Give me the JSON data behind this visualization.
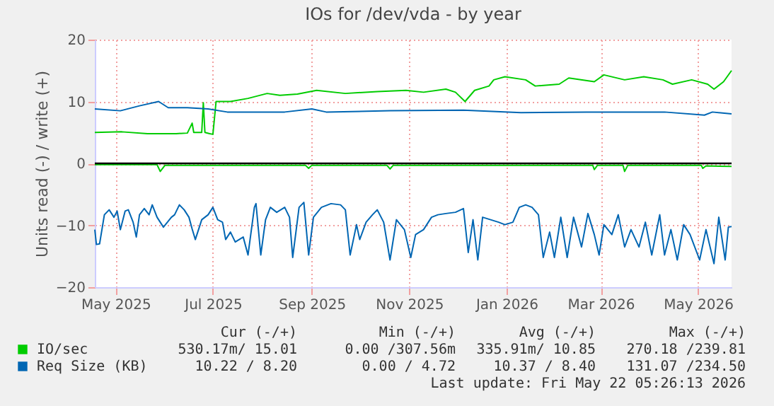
{
  "chart_data": {
    "type": "line",
    "title": "IOs for /dev/vda - by year",
    "ylabel": "Units read (-) / write (+)",
    "xlim": [
      "2025-04-18",
      "2026-05-22"
    ],
    "xticks": [
      {
        "value": "2025-05-01",
        "label": "May 2025"
      },
      {
        "value": "2025-07-01",
        "label": "Jul 2025"
      },
      {
        "value": "2025-09-01",
        "label": "Sep 2025"
      },
      {
        "value": "2025-11-01",
        "label": "Nov 2025"
      },
      {
        "value": "2026-01-01",
        "label": "Jan 2026"
      },
      {
        "value": "2026-03-01",
        "label": "Mar 2026"
      },
      {
        "value": "2026-05-01",
        "label": "May 2026"
      }
    ],
    "ylim": [
      -20,
      20
    ],
    "yticks": [
      -20,
      -10,
      0,
      10,
      20
    ],
    "grid": true,
    "legend": "bottom",
    "marker": "none",
    "line_style": "solid",
    "ref_lines": [
      {
        "axis": "y",
        "value": 0,
        "color": "#000000"
      }
    ],
    "series": [
      {
        "name": "IO/sec",
        "color": "#00cc00",
        "x": [
          "2025-04-18",
          "2025-05-05",
          "2025-05-21",
          "2025-06-08",
          "2025-06-15",
          "2025-06-18",
          "2025-06-19",
          "2025-06-24",
          "2025-06-25",
          "2025-06-26",
          "2025-06-29",
          "2025-07-01",
          "2025-07-03",
          "2025-07-12",
          "2025-07-23",
          "2025-08-04",
          "2025-08-12",
          "2025-08-23",
          "2025-09-04",
          "2025-09-22",
          "2025-10-12",
          "2025-10-30",
          "2025-11-10",
          "2025-11-24",
          "2025-11-30",
          "2025-12-06",
          "2025-12-12",
          "2025-12-21",
          "2025-12-24",
          "2025-12-31",
          "2026-01-13",
          "2026-01-19",
          "2026-02-03",
          "2026-02-09",
          "2026-02-25",
          "2026-03-03",
          "2026-03-16",
          "2026-03-28",
          "2026-04-09",
          "2026-04-15",
          "2026-04-27",
          "2026-05-07",
          "2026-05-11",
          "2026-05-17",
          "2026-05-22"
        ],
        "values": [
          5.0,
          5.1,
          4.8,
          4.8,
          4.9,
          6.5,
          5.0,
          5.0,
          9.8,
          5.0,
          4.8,
          4.7,
          10.0,
          10.0,
          10.5,
          11.3,
          11.0,
          11.2,
          11.8,
          11.3,
          11.6,
          11.8,
          11.5,
          12.0,
          11.5,
          10.0,
          11.8,
          12.5,
          13.5,
          14.0,
          13.5,
          12.5,
          12.8,
          13.8,
          13.2,
          14.3,
          13.5,
          14.0,
          13.5,
          12.8,
          13.5,
          12.8,
          12.0,
          13.2,
          15.0
        ]
      },
      {
        "color": "#00cc00",
        "x": [
          "2025-04-18",
          "2025-05-27",
          "2025-05-29",
          "2025-06-01",
          "2025-08-28",
          "2025-08-30",
          "2025-09-01",
          "2025-10-18",
          "2025-10-20",
          "2025-10-22",
          "2026-02-24",
          "2026-02-25",
          "2026-02-27",
          "2026-03-15",
          "2026-03-16",
          "2026-03-18",
          "2026-05-03",
          "2026-05-04",
          "2026-05-06",
          "2026-05-22"
        ],
        "values": [
          -0.2,
          -0.2,
          -1.3,
          -0.3,
          -0.3,
          -0.8,
          -0.3,
          -0.3,
          -0.9,
          -0.3,
          -0.3,
          -1.0,
          -0.3,
          -0.3,
          -1.3,
          -0.3,
          -0.3,
          -0.8,
          -0.4,
          -0.5
        ]
      },
      {
        "name": "Req Size (KB)",
        "color": "#0066b3",
        "x": [
          "2025-04-18",
          "2025-05-04",
          "2025-05-16",
          "2025-05-28",
          "2025-06-03",
          "2025-06-15",
          "2025-06-28",
          "2025-07-10",
          "2025-08-15",
          "2025-09-01",
          "2025-09-10",
          "2025-10-20",
          "2025-12-05",
          "2026-01-10",
          "2026-02-20",
          "2026-04-10",
          "2026-05-05",
          "2026-05-10",
          "2026-05-22"
        ],
        "values": [
          8.8,
          8.5,
          9.3,
          10.0,
          9.0,
          9.0,
          8.8,
          8.3,
          8.3,
          8.8,
          8.3,
          8.5,
          8.6,
          8.2,
          8.3,
          8.3,
          7.8,
          8.3,
          8.0
        ]
      },
      {
        "color": "#0066b3",
        "x": [
          "2025-04-18",
          "2025-04-19",
          "2025-04-21",
          "2025-04-24",
          "2025-04-27",
          "2025-04-30",
          "2025-05-02",
          "2025-05-04",
          "2025-05-07",
          "2025-05-09",
          "2025-05-12",
          "2025-05-14",
          "2025-05-16",
          "2025-05-19",
          "2025-05-22",
          "2025-05-24",
          "2025-05-27",
          "2025-05-31",
          "2025-06-05",
          "2025-06-07",
          "2025-06-10",
          "2025-06-13",
          "2025-06-16",
          "2025-06-18",
          "2025-06-20",
          "2025-06-24",
          "2025-06-28",
          "2025-07-01",
          "2025-07-04",
          "2025-07-07",
          "2025-07-09",
          "2025-07-12",
          "2025-07-15",
          "2025-07-20",
          "2025-07-23",
          "2025-07-27",
          "2025-07-28",
          "2025-07-31",
          "2025-08-03",
          "2025-08-06",
          "2025-08-10",
          "2025-08-15",
          "2025-08-18",
          "2025-08-20",
          "2025-08-24",
          "2025-08-27",
          "2025-08-30",
          "2025-09-02",
          "2025-09-07",
          "2025-09-13",
          "2025-09-19",
          "2025-09-22",
          "2025-09-25",
          "2025-09-29",
          "2025-10-01",
          "2025-10-05",
          "2025-10-09",
          "2025-10-12",
          "2025-10-16",
          "2025-10-20",
          "2025-10-24",
          "2025-10-29",
          "2025-11-02",
          "2025-11-05",
          "2025-11-10",
          "2025-11-15",
          "2025-11-19",
          "2025-11-24",
          "2025-11-30",
          "2025-12-05",
          "2025-12-08",
          "2025-12-11",
          "2025-12-14",
          "2025-12-17",
          "2025-12-22",
          "2025-12-27",
          "2025-12-31",
          "2026-01-05",
          "2026-01-09",
          "2026-01-13",
          "2026-01-17",
          "2026-01-21",
          "2026-01-24",
          "2026-01-28",
          "2026-01-31",
          "2026-02-04",
          "2026-02-08",
          "2026-02-12",
          "2026-02-17",
          "2026-02-21",
          "2026-02-25",
          "2026-02-28",
          "2026-03-03",
          "2026-03-08",
          "2026-03-12",
          "2026-03-16",
          "2026-03-20",
          "2026-03-25",
          "2026-03-29",
          "2026-04-02",
          "2026-04-07",
          "2026-04-10",
          "2026-04-14",
          "2026-04-18",
          "2026-04-22",
          "2026-04-26",
          "2026-05-02",
          "2026-05-06",
          "2026-05-11",
          "2026-05-14",
          "2026-05-18",
          "2026-05-20",
          "2026-05-22"
        ],
        "values": [
          -10.7,
          -13.1,
          -13.0,
          -8.3,
          -7.5,
          -8.7,
          -7.7,
          -10.7,
          -7.7,
          -7.5,
          -9.5,
          -11.9,
          -8.3,
          -7.3,
          -8.3,
          -6.7,
          -8.7,
          -10.3,
          -8.7,
          -8.3,
          -6.7,
          -7.5,
          -8.7,
          -10.6,
          -12.3,
          -9.1,
          -8.3,
          -7.1,
          -9.1,
          -9.5,
          -12.3,
          -11.1,
          -12.7,
          -11.9,
          -14.8,
          -7.1,
          -6.5,
          -14.8,
          -9.1,
          -7.1,
          -7.9,
          -7.1,
          -8.7,
          -15.2,
          -7.1,
          -6.3,
          -14.8,
          -8.7,
          -7.1,
          -6.5,
          -6.7,
          -7.5,
          -14.8,
          -9.9,
          -12.3,
          -9.5,
          -8.3,
          -7.5,
          -9.5,
          -15.6,
          -9.1,
          -10.7,
          -15.2,
          -11.5,
          -10.7,
          -8.7,
          -8.3,
          -8.1,
          -7.9,
          -7.3,
          -14.4,
          -9.1,
          -15.6,
          -8.7,
          -9.1,
          -9.5,
          -9.9,
          -9.5,
          -7.1,
          -6.7,
          -7.1,
          -8.3,
          -15.2,
          -11.1,
          -15.2,
          -8.7,
          -15.2,
          -8.7,
          -13.5,
          -8.1,
          -11.5,
          -14.8,
          -9.9,
          -11.5,
          -8.3,
          -13.5,
          -10.7,
          -13.5,
          -9.5,
          -14.8,
          -8.3,
          -14.8,
          -10.7,
          -15.6,
          -9.9,
          -11.5,
          -15.6,
          -10.7,
          -16.2,
          -8.7,
          -15.6,
          -10.3,
          -10.2
        ]
      }
    ],
    "annotations": [
      "Cur (-/+)",
      "Min (-/+)",
      "Avg (-/+)",
      "Max (-/+)",
      "530.17m/ 15.01",
      "0.00 /307.56m",
      "335.91m/ 10.85",
      "270.18 /239.81",
      "10.22 /  8.20",
      "0.00 /  4.72",
      "10.37 /  8.40",
      "131.07 /234.50",
      "Last update: Fri May 22 05:26:13 2026"
    ]
  }
}
